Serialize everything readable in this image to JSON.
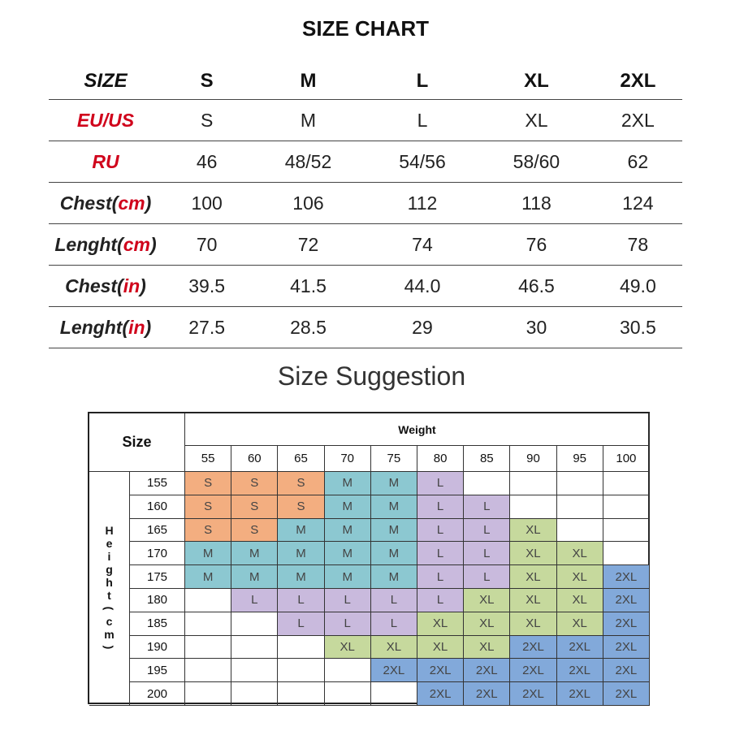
{
  "title": "SIZE CHART",
  "size_chart": {
    "header": [
      "SIZE",
      "S",
      "M",
      "L",
      "XL",
      "2XL"
    ],
    "rows": [
      {
        "label": [
          {
            "t": "EU/US",
            "red": true
          }
        ],
        "values": [
          "S",
          "M",
          "L",
          "XL",
          "2XL"
        ]
      },
      {
        "label": [
          {
            "t": "RU",
            "red": true
          }
        ],
        "values": [
          "46",
          "48/52",
          "54/56",
          "58/60",
          "62"
        ]
      },
      {
        "label": [
          {
            "t": "Chest(",
            "red": false
          },
          {
            "t": "cm",
            "red": true
          },
          {
            "t": ")",
            "red": false
          }
        ],
        "values": [
          "100",
          "106",
          "112",
          "118",
          "124"
        ]
      },
      {
        "label": [
          {
            "t": "Lenght(",
            "red": false
          },
          {
            "t": "cm",
            "red": true
          },
          {
            "t": ")",
            "red": false
          }
        ],
        "values": [
          "70",
          "72",
          "74",
          "76",
          "78"
        ]
      },
      {
        "label": [
          {
            "t": "Chest(",
            "red": false
          },
          {
            "t": "in",
            "red": true
          },
          {
            "t": ")",
            "red": false
          }
        ],
        "values": [
          "39.5",
          "41.5",
          "44.0",
          "46.5",
          "49.0"
        ]
      },
      {
        "label": [
          {
            "t": "Lenght(",
            "red": false
          },
          {
            "t": "in",
            "red": true
          },
          {
            "t": ")",
            "red": false
          }
        ],
        "values": [
          "27.5",
          "28.5",
          "29",
          "30",
          "30.5"
        ]
      }
    ]
  },
  "suggestion": {
    "title": "Size Suggestion",
    "corner": "Size",
    "weight_label": "Weight",
    "height_label": "Height(cm)",
    "weights": [
      "55",
      "60",
      "65",
      "70",
      "75",
      "80",
      "85",
      "90",
      "95",
      "100"
    ],
    "heights": [
      "155",
      "160",
      "165",
      "170",
      "175",
      "180",
      "185",
      "190",
      "195",
      "200"
    ],
    "cells": [
      [
        "S",
        "S",
        "S",
        "M",
        "M",
        "L",
        "",
        "",
        "",
        ""
      ],
      [
        "S",
        "S",
        "S",
        "M",
        "M",
        "L",
        "L",
        "",
        "",
        ""
      ],
      [
        "S",
        "S",
        "M",
        "M",
        "M",
        "L",
        "L",
        "XL",
        "",
        ""
      ],
      [
        "M",
        "M",
        "M",
        "M",
        "M",
        "L",
        "L",
        "XL",
        "XL",
        ""
      ],
      [
        "M",
        "M",
        "M",
        "M",
        "M",
        "L",
        "L",
        "XL",
        "XL",
        "2XL"
      ],
      [
        "",
        "L",
        "L",
        "L",
        "L",
        "L",
        "XL",
        "XL",
        "XL",
        "2XL"
      ],
      [
        "",
        "",
        "L",
        "L",
        "L",
        "XL",
        "XL",
        "XL",
        "XL",
        "2XL"
      ],
      [
        "",
        "",
        "",
        "XL",
        "XL",
        "XL",
        "XL",
        "2XL",
        "2XL",
        "2XL"
      ],
      [
        "",
        "",
        "",
        "",
        "2XL",
        "2XL",
        "2XL",
        "2XL",
        "2XL",
        "2XL"
      ],
      [
        "",
        "",
        "",
        "",
        "",
        "2XL",
        "2XL",
        "2XL",
        "2XL",
        "2XL"
      ]
    ],
    "colors": {
      "S": "#f3ae80",
      "M": "#8cc8d1",
      "L": "#c9badd",
      "XL": "#c6d99d",
      "2XL": "#82a9da"
    }
  }
}
